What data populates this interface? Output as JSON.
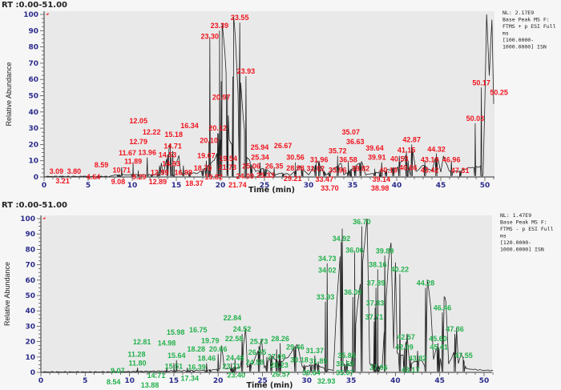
{
  "chart_data": [
    {
      "type": "line",
      "rt_range_label": "RT :0.00-51.00",
      "xlabel": "Time (min)",
      "ylabel": "Relative Abundance",
      "xlim": [
        0,
        51
      ],
      "ylim": [
        0,
        100
      ],
      "xticks": [
        0,
        5,
        10,
        15,
        20,
        25,
        30,
        35,
        40,
        45,
        50
      ],
      "yticks": [
        0,
        10,
        20,
        30,
        40,
        50,
        60,
        70,
        80,
        90,
        100
      ],
      "info": [
        "NL: 2.17E9",
        "Base Peak MS  F:",
        "FTMS + p ESI Full",
        "ms",
        "[100.0000-",
        "1000.0000] ISN"
      ],
      "label_color": "#f0141e",
      "trace": [
        [
          0,
          0
        ],
        [
          7.5,
          0
        ],
        [
          8,
          1
        ],
        [
          13,
          1
        ],
        [
          13.3,
          8
        ],
        [
          13.5,
          1
        ],
        [
          14.3,
          20
        ],
        [
          14.5,
          2
        ],
        [
          15.3,
          12
        ],
        [
          15.5,
          2
        ],
        [
          17.5,
          2
        ],
        [
          18.5,
          6
        ],
        [
          19.3,
          10
        ],
        [
          19.6,
          14
        ],
        [
          19.8,
          26
        ],
        [
          20,
          22
        ],
        [
          20.2,
          93
        ],
        [
          20.5,
          75
        ],
        [
          20.8,
          50
        ],
        [
          21,
          22
        ],
        [
          21.3,
          20
        ],
        [
          21.5,
          98
        ],
        [
          21.7,
          84
        ],
        [
          22,
          50
        ],
        [
          22.3,
          57
        ],
        [
          22.6,
          35
        ],
        [
          23,
          12
        ],
        [
          24,
          3
        ],
        [
          25,
          5
        ],
        [
          26,
          1
        ],
        [
          27,
          2
        ],
        [
          28,
          1
        ],
        [
          29,
          6
        ],
        [
          30,
          1
        ],
        [
          31,
          9
        ],
        [
          32,
          1
        ],
        [
          33.7,
          8
        ],
        [
          34,
          1
        ],
        [
          36,
          9
        ],
        [
          36.5,
          1
        ],
        [
          40,
          5
        ],
        [
          41,
          12
        ],
        [
          41.5,
          3
        ],
        [
          41.8,
          16
        ],
        [
          42.2,
          3
        ],
        [
          43,
          7
        ],
        [
          44,
          3
        ],
        [
          44.5,
          14
        ],
        [
          45,
          3
        ],
        [
          45.3,
          12
        ],
        [
          46,
          3
        ],
        [
          47,
          3
        ],
        [
          48,
          5
        ],
        [
          49.5,
          6
        ],
        [
          49.8,
          1
        ],
        [
          50,
          45
        ],
        [
          50.2,
          99
        ],
        [
          50.5,
          60
        ],
        [
          50.8,
          95
        ],
        [
          51,
          45
        ]
      ],
      "peaks": [
        {
          "label": "3.09",
          "t": 1.4,
          "a": 3.4
        },
        {
          "label": "3.21",
          "t": 2.1,
          "a": 0
        },
        {
          "label": "3.80",
          "t": 3.4,
          "a": 3.4
        },
        {
          "label": "4.64",
          "t": 4.5,
          "a": 0
        },
        {
          "label": "8.59",
          "t": 6.5,
          "a": 0
        },
        {
          "label": "9.08",
          "t": 8.4,
          "a": 2
        },
        {
          "label": "9.29",
          "t": 8.6,
          "a": 0
        },
        {
          "label": "10.71",
          "t": 8.8,
          "a": 9
        },
        {
          "label": "11.67",
          "t": 10.0,
          "a": 5
        },
        {
          "label": "11.89",
          "t": 10.1,
          "a": 12
        },
        {
          "label": "12.79",
          "t": 10.7,
          "a": 7
        },
        {
          "label": "12.05",
          "t": 10.7,
          "a": 0
        },
        {
          "label": "12.22",
          "t": 12.2,
          "a": 3
        },
        {
          "label": "13.96",
          "t": 11.7,
          "a": 15
        },
        {
          "label": "12.99",
          "t": 13.1,
          "a": 10
        },
        {
          "label": "12.89",
          "t": 12.9,
          "a": 7
        },
        {
          "label": "14.71",
          "t": 14.6,
          "a": 19
        },
        {
          "label": "14.53",
          "t": 14.0,
          "a": 16
        },
        {
          "label": "14.83",
          "t": 14.4,
          "a": 13
        },
        {
          "label": "15.18",
          "t": 14.7,
          "a": 4
        },
        {
          "label": "16.99",
          "t": 15.8,
          "a": 10
        },
        {
          "label": "18.37",
          "t": 16.5,
          "a": 6
        },
        {
          "label": "16.34",
          "t": 16.5,
          "a": 2
        },
        {
          "label": "19.07",
          "t": 18.4,
          "a": 13
        },
        {
          "label": "18.70",
          "t": 18.0,
          "a": 8
        },
        {
          "label": "19.54",
          "t": 18.7,
          "a": 4
        },
        {
          "label": "19.82",
          "t": 18.7,
          "a": 0
        },
        {
          "label": "20.10",
          "t": 18.7,
          "a": 25
        },
        {
          "label": "20.12",
          "t": 19.7,
          "a": 30
        },
        {
          "label": "20.97",
          "t": 20.1,
          "a": 49
        },
        {
          "label": "21.73",
          "t": 20.8,
          "a": 6
        },
        {
          "label": "21.74",
          "t": 21.4,
          "a": 0
        },
        {
          "label": "23.30",
          "t": 18.8,
          "a": 89
        },
        {
          "label": "23.39",
          "t": 19.9,
          "a": 93
        },
        {
          "label": "23.55",
          "t": 22.2,
          "a": 98
        },
        {
          "label": "23.93",
          "t": 22.9,
          "a": 65
        },
        {
          "label": "24.09",
          "t": 22.8,
          "a": 3
        },
        {
          "label": "25.06",
          "t": 23.5,
          "a": 9
        },
        {
          "label": "25.34",
          "t": 24.5,
          "a": 12
        },
        {
          "label": "25.33",
          "t": 25.1,
          "a": 6
        },
        {
          "label": "25.94",
          "t": 25.0,
          "a": 1
        },
        {
          "label": "26.35",
          "t": 26.1,
          "a": 9
        },
        {
          "label": "26.67",
          "t": 27.1,
          "a": 2
        },
        {
          "label": "30.56",
          "t": 28.5,
          "a": 12
        },
        {
          "label": "28.98",
          "t": 28.5,
          "a": 8
        },
        {
          "label": "29.21",
          "t": 29.3,
          "a": 4
        },
        {
          "label": "31.96",
          "t": 31.2,
          "a": 13
        },
        {
          "label": "31.02",
          "t": 30.8,
          "a": 10
        },
        {
          "label": "33.47",
          "t": 31.8,
          "a": 6
        },
        {
          "label": "33.70",
          "t": 32.4,
          "a": 3
        },
        {
          "label": "35.72",
          "t": 33.3,
          "a": 16
        },
        {
          "label": "33.96",
          "t": 33.3,
          "a": 9
        },
        {
          "label": "36.58",
          "t": 34.5,
          "a": 13
        },
        {
          "label": "36.63",
          "t": 35.3,
          "a": 7
        },
        {
          "label": "35.07",
          "t": 34.8,
          "a": 3
        },
        {
          "label": "38.82",
          "t": 35.9,
          "a": 10
        },
        {
          "label": "39.64",
          "t": 37.5,
          "a": 8
        },
        {
          "label": "39.91",
          "t": 38.3,
          "a": 12
        },
        {
          "label": "38.98",
          "t": 38.1,
          "a": 3
        },
        {
          "label": "39.14",
          "t": 38.8,
          "a": 6
        },
        {
          "label": "40.19",
          "t": 39.6,
          "a": 9
        },
        {
          "label": "40.53",
          "t": 40.3,
          "a": 16
        },
        {
          "label": "41.15",
          "t": 41.1,
          "a": 19
        },
        {
          "label": "40.66",
          "t": 41.3,
          "a": 13
        },
        {
          "label": "42.87",
          "t": 41.7,
          "a": 23
        },
        {
          "label": "43.19",
          "t": 43.2,
          "a": 13
        },
        {
          "label": "43.42",
          "t": 43.2,
          "a": 9
        },
        {
          "label": "44.32",
          "t": 44.5,
          "a": 17
        },
        {
          "label": "46.96",
          "t": 46.2,
          "a": 13
        },
        {
          "label": "47.31",
          "t": 47.2,
          "a": 4
        },
        {
          "label": "50.03",
          "t": 48.9,
          "a": 36
        },
        {
          "label": "50.17",
          "t": 49.6,
          "a": 58
        },
        {
          "label": "50.25",
          "t": 51.6,
          "a": 52
        }
      ]
    },
    {
      "type": "line",
      "rt_range_label": "RT :0.00-51.00",
      "xlabel": "Time (min)",
      "ylabel": "Relative Abundance",
      "xlim": [
        0,
        51
      ],
      "ylim": [
        0,
        100
      ],
      "xticks": [
        0,
        5,
        10,
        15,
        20,
        25,
        30,
        35,
        40,
        45,
        50
      ],
      "yticks": [
        0,
        10,
        20,
        30,
        40,
        50,
        60,
        70,
        80,
        90,
        100
      ],
      "info": [
        "NL: 1.47E9",
        "Base Peak MS  F:",
        "FTMS - p ESI Full",
        "ms",
        "[120.0000-",
        "1000.0000] ISN"
      ],
      "label_color": "#22b14c",
      "trace": [
        [
          0,
          0
        ],
        [
          8,
          0
        ],
        [
          19,
          1
        ],
        [
          20.2,
          2
        ],
        [
          20.4,
          17
        ],
        [
          20.7,
          2
        ],
        [
          22.5,
          3
        ],
        [
          23.1,
          27
        ],
        [
          23.3,
          3
        ],
        [
          24,
          6
        ],
        [
          24.9,
          20
        ],
        [
          25.2,
          3
        ],
        [
          26,
          10
        ],
        [
          27,
          6
        ],
        [
          28,
          10
        ],
        [
          28.9,
          18
        ],
        [
          29.5,
          3
        ],
        [
          31,
          5
        ],
        [
          32,
          2
        ],
        [
          33,
          1
        ],
        [
          33.5,
          55
        ],
        [
          34,
          92
        ],
        [
          34.1,
          5
        ],
        [
          35,
          4
        ],
        [
          36.3,
          70
        ],
        [
          36.8,
          98
        ],
        [
          37.1,
          5
        ],
        [
          38.5,
          3
        ],
        [
          39.2,
          70
        ],
        [
          39.5,
          82
        ],
        [
          39.8,
          15
        ],
        [
          40,
          70
        ],
        [
          40.2,
          12
        ],
        [
          41,
          10
        ],
        [
          41.3,
          25
        ],
        [
          41.6,
          5
        ],
        [
          42.8,
          8
        ],
        [
          43.3,
          4
        ],
        [
          43.6,
          58
        ],
        [
          44,
          40
        ],
        [
          44.3,
          8
        ],
        [
          44.8,
          18
        ],
        [
          45.2,
          4
        ],
        [
          45.5,
          48
        ],
        [
          45.7,
          45
        ],
        [
          46,
          5
        ],
        [
          46.6,
          12
        ],
        [
          46.9,
          28
        ],
        [
          47.1,
          5
        ],
        [
          47.4,
          12
        ],
        [
          48,
          2
        ],
        [
          50,
          1
        ],
        [
          51,
          1
        ]
      ],
      "peaks": [
        {
          "label": "8.54",
          "t": 8.2,
          "a": -1
        },
        {
          "label": "9.07",
          "t": 9.2,
          "a": 1
        },
        {
          "label": "11.80",
          "t": 10.9,
          "a": 6
        },
        {
          "label": "11.28",
          "t": 10.8,
          "a": 4
        },
        {
          "label": "12.81",
          "t": 11.4,
          "a": -1
        },
        {
          "label": "13.88",
          "t": 12.3,
          "a": 2
        },
        {
          "label": "14.98",
          "t": 14.2,
          "a": 6
        },
        {
          "label": "14.71",
          "t": 14.1,
          "a": 3
        },
        {
          "label": "15.64",
          "t": 15.3,
          "a": 11
        },
        {
          "label": "15.51",
          "t": 15.0,
          "a": 9
        },
        {
          "label": "15.98",
          "t": 15.2,
          "a": 0
        },
        {
          "label": "16.39",
          "t": 16.5,
          "a": 6
        },
        {
          "label": "17.34",
          "t": 16.8,
          "a": 4
        },
        {
          "label": "16.75",
          "t": 17.2,
          "a": -1
        },
        {
          "label": "18.28",
          "t": 18.6,
          "a": 2
        },
        {
          "label": "18.46",
          "t": 18.7,
          "a": 9
        },
        {
          "label": "19.79",
          "t": 19.1,
          "a": 5
        },
        {
          "label": "20.66",
          "t": 20.0,
          "a": 15
        },
        {
          "label": "24.48",
          "t": 21.9,
          "a": 12
        },
        {
          "label": "23.71",
          "t": 21.5,
          "a": 9
        },
        {
          "label": "23.40",
          "t": 21.5,
          "a": 6
        },
        {
          "label": "22.84",
          "t": 21.6,
          "a": -1
        },
        {
          "label": "22.58",
          "t": 21.8,
          "a": 1
        },
        {
          "label": "24.58",
          "t": 23.6,
          "a": 9
        },
        {
          "label": "24.52",
          "t": 22.7,
          "a": 28
        },
        {
          "label": "25.73",
          "t": 24.6,
          "a": 20
        },
        {
          "label": "26.55",
          "t": 25.5,
          "a": 13
        },
        {
          "label": "26.57",
          "t": 26.0,
          "a": 9
        },
        {
          "label": "27.09",
          "t": 26.6,
          "a": 18
        },
        {
          "label": "28.26",
          "t": 27.0,
          "a": 22
        },
        {
          "label": "28.23",
          "t": 26.9,
          "a": 15
        },
        {
          "label": "29.46",
          "t": 28.7,
          "a": 19
        },
        {
          "label": "31.37",
          "t": 30.9,
          "a": 14
        },
        {
          "label": "31.85",
          "t": 31.3,
          "a": 10
        },
        {
          "label": "30.64",
          "t": 30.5,
          "a": 5
        },
        {
          "label": "30.18",
          "t": 29.7,
          "a": 8
        },
        {
          "label": "32.93",
          "t": 32.2,
          "a": 2
        },
        {
          "label": "35.86",
          "t": 34.5,
          "a": 11
        },
        {
          "label": "35.59",
          "t": 34.3,
          "a": 8
        },
        {
          "label": "35.07",
          "t": 34.3,
          "a": 5
        },
        {
          "label": "33.93",
          "t": 32.1,
          "a": 49
        },
        {
          "label": "34.02",
          "t": 32.3,
          "a": 69
        },
        {
          "label": "34.73",
          "t": 32.3,
          "a": 74
        },
        {
          "label": "34.92",
          "t": 33.9,
          "a": 87
        },
        {
          "label": "36.06",
          "t": 35.4,
          "a": 82
        },
        {
          "label": "36.00",
          "t": 35.2,
          "a": 52
        },
        {
          "label": "36.70",
          "t": 36.2,
          "a": 98
        },
        {
          "label": "37.06",
          "t": 38.1,
          "a": 3
        },
        {
          "label": "37.71",
          "t": 37.6,
          "a": 36
        },
        {
          "label": "37.83",
          "t": 37.7,
          "a": 45
        },
        {
          "label": "37.89",
          "t": 37.8,
          "a": 58
        },
        {
          "label": "38.16",
          "t": 38.0,
          "a": 70
        },
        {
          "label": "39.89",
          "t": 38.8,
          "a": 79
        },
        {
          "label": "40.22",
          "t": 40.5,
          "a": 67
        },
        {
          "label": "44.28",
          "t": 43.4,
          "a": 58
        },
        {
          "label": "42.57",
          "t": 41.2,
          "a": 23
        },
        {
          "label": "42.09",
          "t": 41.0,
          "a": 19
        },
        {
          "label": "43.82",
          "t": 42.5,
          "a": 17
        },
        {
          "label": "43.17",
          "t": 41.7,
          "a": 12
        },
        {
          "label": "45.60",
          "t": 44.8,
          "a": 22
        },
        {
          "label": "45.41",
          "t": 44.9,
          "a": 19
        },
        {
          "label": "46.46",
          "t": 45.3,
          "a": 42
        },
        {
          "label": "47.36",
          "t": 46.7,
          "a": 28
        },
        {
          "label": "47.55",
          "t": 47.7,
          "a": 11
        }
      ]
    }
  ]
}
